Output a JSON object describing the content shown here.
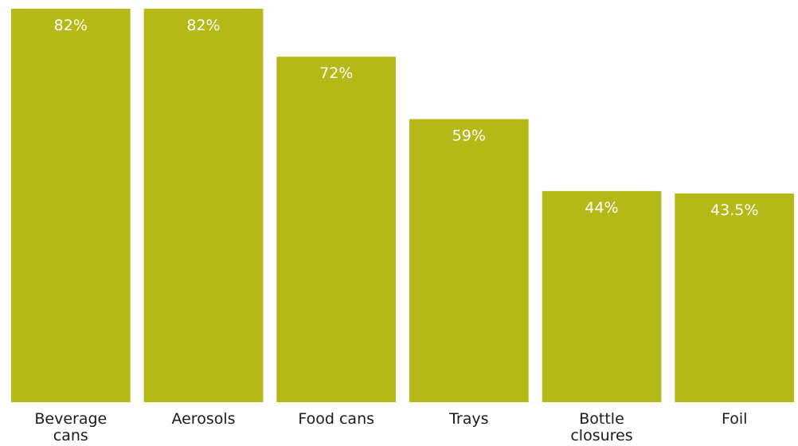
{
  "chart_data": {
    "type": "bar",
    "categories": [
      "Beverage cans",
      "Aerosols",
      "Food cans",
      "Trays",
      "Bottle closures",
      "Foil"
    ],
    "category_lines": [
      [
        "Beverage",
        "cans"
      ],
      [
        "Aerosols"
      ],
      [
        "Food cans"
      ],
      [
        "Trays"
      ],
      [
        "Bottle",
        "closures"
      ],
      [
        "Foil"
      ]
    ],
    "values": [
      82,
      82,
      72,
      59,
      44,
      43.5
    ],
    "value_labels": [
      "82%",
      "82%",
      "72%",
      "59%",
      "44%",
      "43.5%"
    ],
    "ylim": [
      0,
      82
    ],
    "bar_color": "#b5b918",
    "value_label_color": "#ffffff",
    "title": "",
    "xlabel": "",
    "ylabel": "",
    "grid": false,
    "legend": "none"
  }
}
